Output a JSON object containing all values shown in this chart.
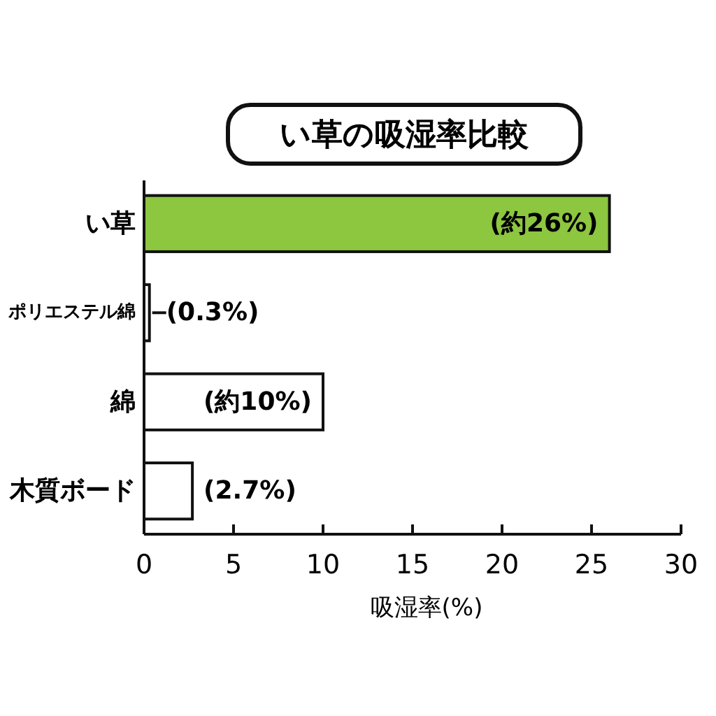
{
  "chart_data": {
    "type": "bar",
    "orientation": "horizontal",
    "title": "い草の吸湿率比較",
    "xlabel": "吸湿率(%)",
    "categories": [
      "い草",
      "ポリエステル綿",
      "綿",
      "木質ボード"
    ],
    "values": [
      26,
      0.3,
      10,
      2.7
    ],
    "colors": [
      "#8dc63f",
      "#ffffff",
      "#ffffff",
      "#ffffff"
    ],
    "value_labels": [
      "(約26%)",
      "(0.3%)",
      "(約10%)",
      "(2.7%)"
    ],
    "xlim": [
      0,
      30
    ],
    "xticks": [
      0,
      5,
      10,
      15,
      20,
      25,
      30
    ],
    "grid": false
  }
}
